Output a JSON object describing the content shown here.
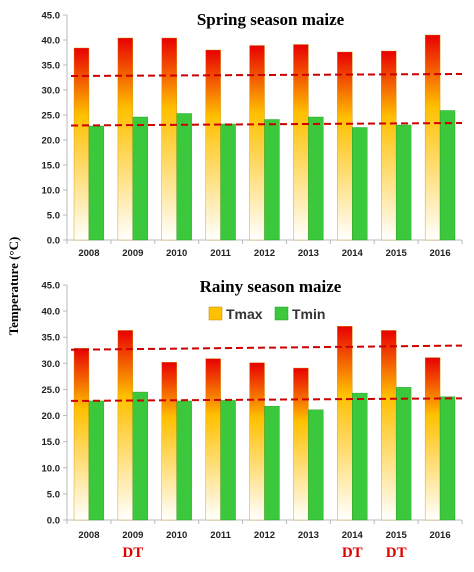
{
  "y_axis_label": "Temperature (°C)",
  "colors": {
    "tmax_top": "#e80000",
    "tmax_mid": "#ffc000",
    "tmax_bottom": "#ffffff",
    "tmin": "#3cc83c",
    "trend": "#cc0000",
    "axis": "#bbbbbb",
    "dt_label": "#e00000"
  },
  "chart_data": [
    {
      "type": "bar",
      "title": "Spring season maize",
      "categories": [
        "2008",
        "2009",
        "2010",
        "2011",
        "2012",
        "2013",
        "2014",
        "2015",
        "2016"
      ],
      "ylim": [
        0,
        45
      ],
      "yticks": [
        "0.0",
        "5.0",
        "10.0",
        "15.0",
        "20.0",
        "25.0",
        "30.0",
        "35.0",
        "40.0",
        "45.0"
      ],
      "legend": null,
      "series": [
        {
          "name": "Tmax",
          "values": [
            38.4,
            40.4,
            40.4,
            38.0,
            38.9,
            39.1,
            37.6,
            37.8,
            41.0
          ]
        },
        {
          "name": "Tmin",
          "values": [
            22.8,
            24.6,
            25.3,
            23.2,
            24.1,
            24.6,
            22.5,
            23.0,
            25.9
          ]
        }
      ],
      "trend_lines": [
        {
          "from": 32.8,
          "to": 33.2
        },
        {
          "from": 22.9,
          "to": 23.4
        }
      ],
      "annotations": []
    },
    {
      "type": "bar",
      "title": "Rainy season maize",
      "categories": [
        "2008",
        "2009",
        "2010",
        "2011",
        "2012",
        "2013",
        "2014",
        "2015",
        "2016"
      ],
      "ylim": [
        0,
        45
      ],
      "yticks": [
        "0.0",
        "5.0",
        "10.0",
        "15.0",
        "20.0",
        "25.0",
        "30.0",
        "35.0",
        "40.0",
        "45.0"
      ],
      "legend": "top",
      "series": [
        {
          "name": "Tmax",
          "values": [
            32.9,
            36.3,
            30.2,
            30.9,
            30.1,
            29.1,
            37.1,
            36.3,
            31.1
          ]
        },
        {
          "name": "Tmin",
          "values": [
            22.8,
            24.5,
            22.8,
            22.9,
            21.8,
            21.1,
            24.3,
            25.4,
            23.6
          ]
        }
      ],
      "trend_lines": [
        {
          "from": 32.6,
          "to": 33.4
        },
        {
          "from": 22.8,
          "to": 23.3
        }
      ],
      "annotations": [
        {
          "category": "2009",
          "text": "DT"
        },
        {
          "category": "2014",
          "text": "DT"
        },
        {
          "category": "2015",
          "text": "DT"
        }
      ]
    }
  ]
}
